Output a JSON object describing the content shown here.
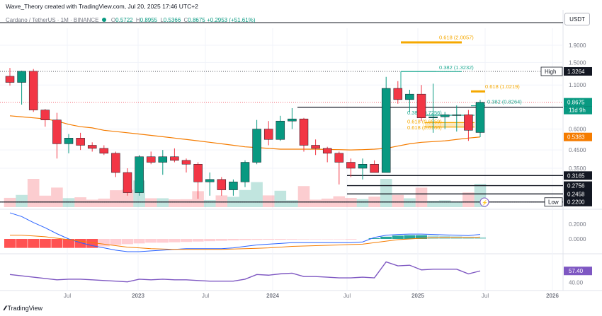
{
  "header": {
    "caption": "Wave_Theory created with TradingView.com, Jul 20, 2025 17:46 UTC+2",
    "symbol": "Cardano / TetherUS · 1M · BINANCE",
    "ohlc": [
      {
        "label": "O",
        "value": "0.5722"
      },
      {
        "label": "H",
        "value": "0.8955"
      },
      {
        "label": "L",
        "value": "0.5366"
      },
      {
        "label": "C",
        "value": "0.8675"
      }
    ],
    "change": "+0.2953 (+51.61%)",
    "currency": "USDT"
  },
  "footer": {
    "brand": "TradingView",
    "logo": "tradingview-logo"
  },
  "colors": {
    "up": "#089981",
    "down": "#f23645",
    "ma": "#f57c00",
    "rsi": "#7e57c2",
    "fib": "#f5a800",
    "fib382": "#22ab94"
  },
  "chart_data": [
    {
      "type": "candlestick",
      "panel": "price",
      "log_scale": true,
      "x_tick_labels": [
        "Jul",
        "2023",
        "Jul",
        "2024",
        "Jul",
        "2025",
        "Jul",
        "2026"
      ],
      "y_ticks": [
        "1.9000",
        "1.5000",
        "1.1000",
        "0.6000",
        "0.4500",
        "0.3500"
      ],
      "candles": [
        {
          "o": 1.24,
          "h": 1.39,
          "l": 1.09,
          "c": 1.14
        },
        {
          "o": 1.14,
          "h": 1.34,
          "l": 0.84,
          "c": 1.33
        },
        {
          "o": 1.33,
          "h": 1.37,
          "l": 0.76,
          "c": 0.78
        },
        {
          "o": 0.78,
          "h": 0.79,
          "l": 0.62,
          "c": 0.68
        },
        {
          "o": 0.68,
          "h": 0.75,
          "l": 0.4,
          "c": 0.49
        },
        {
          "o": 0.49,
          "h": 0.56,
          "l": 0.43,
          "c": 0.53
        },
        {
          "o": 0.53,
          "h": 0.57,
          "l": 0.45,
          "c": 0.48
        },
        {
          "o": 0.48,
          "h": 0.5,
          "l": 0.44,
          "c": 0.46
        },
        {
          "o": 0.46,
          "h": 0.48,
          "l": 0.42,
          "c": 0.43
        },
        {
          "o": 0.43,
          "h": 0.44,
          "l": 0.31,
          "c": 0.33
        },
        {
          "o": 0.33,
          "h": 0.35,
          "l": 0.24,
          "c": 0.25
        },
        {
          "o": 0.25,
          "h": 0.42,
          "l": 0.24,
          "c": 0.41
        },
        {
          "o": 0.41,
          "h": 0.44,
          "l": 0.37,
          "c": 0.38
        },
        {
          "o": 0.38,
          "h": 0.45,
          "l": 0.32,
          "c": 0.41
        },
        {
          "o": 0.41,
          "h": 0.46,
          "l": 0.38,
          "c": 0.39
        },
        {
          "o": 0.39,
          "h": 0.4,
          "l": 0.33,
          "c": 0.37
        },
        {
          "o": 0.37,
          "h": 0.38,
          "l": 0.23,
          "c": 0.29
        },
        {
          "o": 0.29,
          "h": 0.33,
          "l": 0.24,
          "c": 0.3
        },
        {
          "o": 0.3,
          "h": 0.31,
          "l": 0.24,
          "c": 0.26
        },
        {
          "o": 0.26,
          "h": 0.3,
          "l": 0.24,
          "c": 0.29
        },
        {
          "o": 0.29,
          "h": 0.39,
          "l": 0.27,
          "c": 0.38
        },
        {
          "o": 0.38,
          "h": 0.68,
          "l": 0.37,
          "c": 0.6
        },
        {
          "o": 0.6,
          "h": 0.67,
          "l": 0.48,
          "c": 0.52
        },
        {
          "o": 0.52,
          "h": 0.72,
          "l": 0.51,
          "c": 0.67
        },
        {
          "o": 0.67,
          "h": 0.8,
          "l": 0.6,
          "c": 0.69
        },
        {
          "o": 0.69,
          "h": 0.7,
          "l": 0.44,
          "c": 0.48
        },
        {
          "o": 0.48,
          "h": 0.52,
          "l": 0.42,
          "c": 0.46
        },
        {
          "o": 0.46,
          "h": 0.47,
          "l": 0.38,
          "c": 0.43
        },
        {
          "o": 0.43,
          "h": 0.44,
          "l": 0.28,
          "c": 0.38
        },
        {
          "o": 0.38,
          "h": 0.4,
          "l": 0.31,
          "c": 0.35
        },
        {
          "o": 0.35,
          "h": 0.4,
          "l": 0.3,
          "c": 0.37
        },
        {
          "o": 0.37,
          "h": 0.39,
          "l": 0.33,
          "c": 0.33
        },
        {
          "o": 0.33,
          "h": 1.23,
          "l": 0.33,
          "c": 1.05
        },
        {
          "o": 1.05,
          "h": 1.16,
          "l": 0.85,
          "c": 0.9
        },
        {
          "o": 0.9,
          "h": 1.03,
          "l": 0.76,
          "c": 0.97
        },
        {
          "o": 0.97,
          "h": 1.1,
          "l": 0.67,
          "c": 0.7
        },
        {
          "o": 0.7,
          "h": 1.12,
          "l": 0.57,
          "c": 0.71
        },
        {
          "o": 0.71,
          "h": 0.76,
          "l": 0.6,
          "c": 0.73
        },
        {
          "o": 0.73,
          "h": 0.83,
          "l": 0.58,
          "c": 0.73
        },
        {
          "o": 0.73,
          "h": 0.78,
          "l": 0.51,
          "c": 0.59
        },
        {
          "o": 0.5722,
          "h": 0.8955,
          "l": 0.5366,
          "c": 0.8675
        }
      ],
      "moving_average": [
        0.72,
        0.71,
        0.7,
        0.69,
        0.67,
        0.64,
        0.62,
        0.61,
        0.59,
        0.58,
        0.57,
        0.56,
        0.55,
        0.54,
        0.53,
        0.52,
        0.51,
        0.5,
        0.49,
        0.48,
        0.47,
        0.465,
        0.46,
        0.455,
        0.455,
        0.455,
        0.455,
        0.453,
        0.452,
        0.45,
        0.452,
        0.455,
        0.46,
        0.475,
        0.49,
        0.5,
        0.505,
        0.51,
        0.52,
        0.53,
        0.5383
      ],
      "fib_levels": [
        {
          "label": "0.618 (2.0057)",
          "value": 2.0057,
          "color": "#f5a800"
        },
        {
          "label": "0.382 (1.3232)",
          "value": 1.3232,
          "color": "#22ab94"
        },
        {
          "label": "0.618 (1.0219)",
          "value": 1.0219,
          "color": "#f5a800"
        },
        {
          "label": "0.382 (0.8264)",
          "value": 0.8264,
          "color": "#22ab94"
        },
        {
          "label": "0.382 (0.7256)",
          "value": 0.7256,
          "color": "#22ab94"
        },
        {
          "label": "0.618 (0.6559)",
          "value": 0.6559,
          "color": "#f5a800"
        },
        {
          "label": "0.618 (0.6166)",
          "value": 0.6166,
          "color": "#f5a800"
        }
      ],
      "horizontal_levels": [
        {
          "value": 0.8104,
          "label": "0.8104"
        },
        {
          "value": 0.3165,
          "label": "0.3165"
        },
        {
          "value": 0.2756,
          "label": "0.2756"
        },
        {
          "value": 0.2458,
          "label": "0.2458"
        },
        {
          "value": 0.22,
          "label": "0.2200"
        }
      ],
      "price_tags": [
        {
          "text": "High",
          "value": "1.3264",
          "style": "black"
        },
        {
          "text": "",
          "value": "0.8675",
          "style": "green",
          "sub": "11d 9h"
        },
        {
          "text": "",
          "value": "0.5383",
          "style": "orange"
        },
        {
          "text": "Low",
          "value": "0.2200",
          "style": "black"
        }
      ]
    },
    {
      "type": "histogram",
      "panel": "macd",
      "y_ticks": [
        "0.2000",
        "0.0000"
      ],
      "histogram": [
        -0.12,
        -0.12,
        -0.12,
        -0.12,
        -0.12,
        -0.12,
        -0.12,
        -0.12,
        -0.1,
        -0.08,
        -0.07,
        -0.06,
        -0.05,
        -0.05,
        -0.045,
        -0.04,
        -0.035,
        -0.03,
        -0.025,
        -0.02,
        -0.015,
        -0.012,
        -0.01,
        -0.01,
        -0.008,
        -0.006,
        -0.005,
        -0.005,
        -0.005,
        -0.008,
        0.0,
        0.01,
        0.03,
        0.045,
        0.05,
        0.05,
        0.045,
        0.04,
        0.035,
        0.03,
        0.025
      ],
      "macd_line": [
        0.35,
        0.3,
        0.22,
        0.15,
        0.07,
        0.0,
        -0.05,
        -0.09,
        -0.12,
        -0.15,
        -0.17,
        -0.17,
        -0.16,
        -0.15,
        -0.14,
        -0.13,
        -0.13,
        -0.13,
        -0.13,
        -0.12,
        -0.1,
        -0.08,
        -0.07,
        -0.06,
        -0.05,
        -0.05,
        -0.05,
        -0.05,
        -0.05,
        -0.05,
        -0.04,
        0.02,
        0.05,
        0.06,
        0.065,
        0.065,
        0.06,
        0.055,
        0.05,
        0.045,
        0.06
      ],
      "signal_line": [
        0.05,
        0.05,
        0.04,
        0.03,
        0.01,
        -0.01,
        -0.03,
        -0.05,
        -0.07,
        -0.09,
        -0.11,
        -0.12,
        -0.13,
        -0.135,
        -0.14,
        -0.14,
        -0.14,
        -0.14,
        -0.14,
        -0.135,
        -0.13,
        -0.125,
        -0.12,
        -0.11,
        -0.1,
        -0.095,
        -0.09,
        -0.085,
        -0.08,
        -0.075,
        -0.07,
        -0.05,
        -0.03,
        -0.01,
        0.0,
        0.01,
        0.015,
        0.02,
        0.02,
        0.02,
        0.025
      ]
    },
    {
      "type": "line",
      "panel": "rsi",
      "y_ticks": [
        "40.00"
      ],
      "last_value": "57.40",
      "values": [
        52,
        50,
        48,
        46,
        44,
        45,
        45,
        44,
        43,
        42,
        41,
        45,
        44,
        45,
        44,
        44,
        43,
        42,
        42,
        42,
        45,
        52,
        51,
        53,
        54,
        49,
        49,
        48,
        47,
        47,
        48,
        47,
        71,
        65,
        66,
        59,
        60,
        60,
        60,
        53,
        57.4
      ]
    }
  ]
}
